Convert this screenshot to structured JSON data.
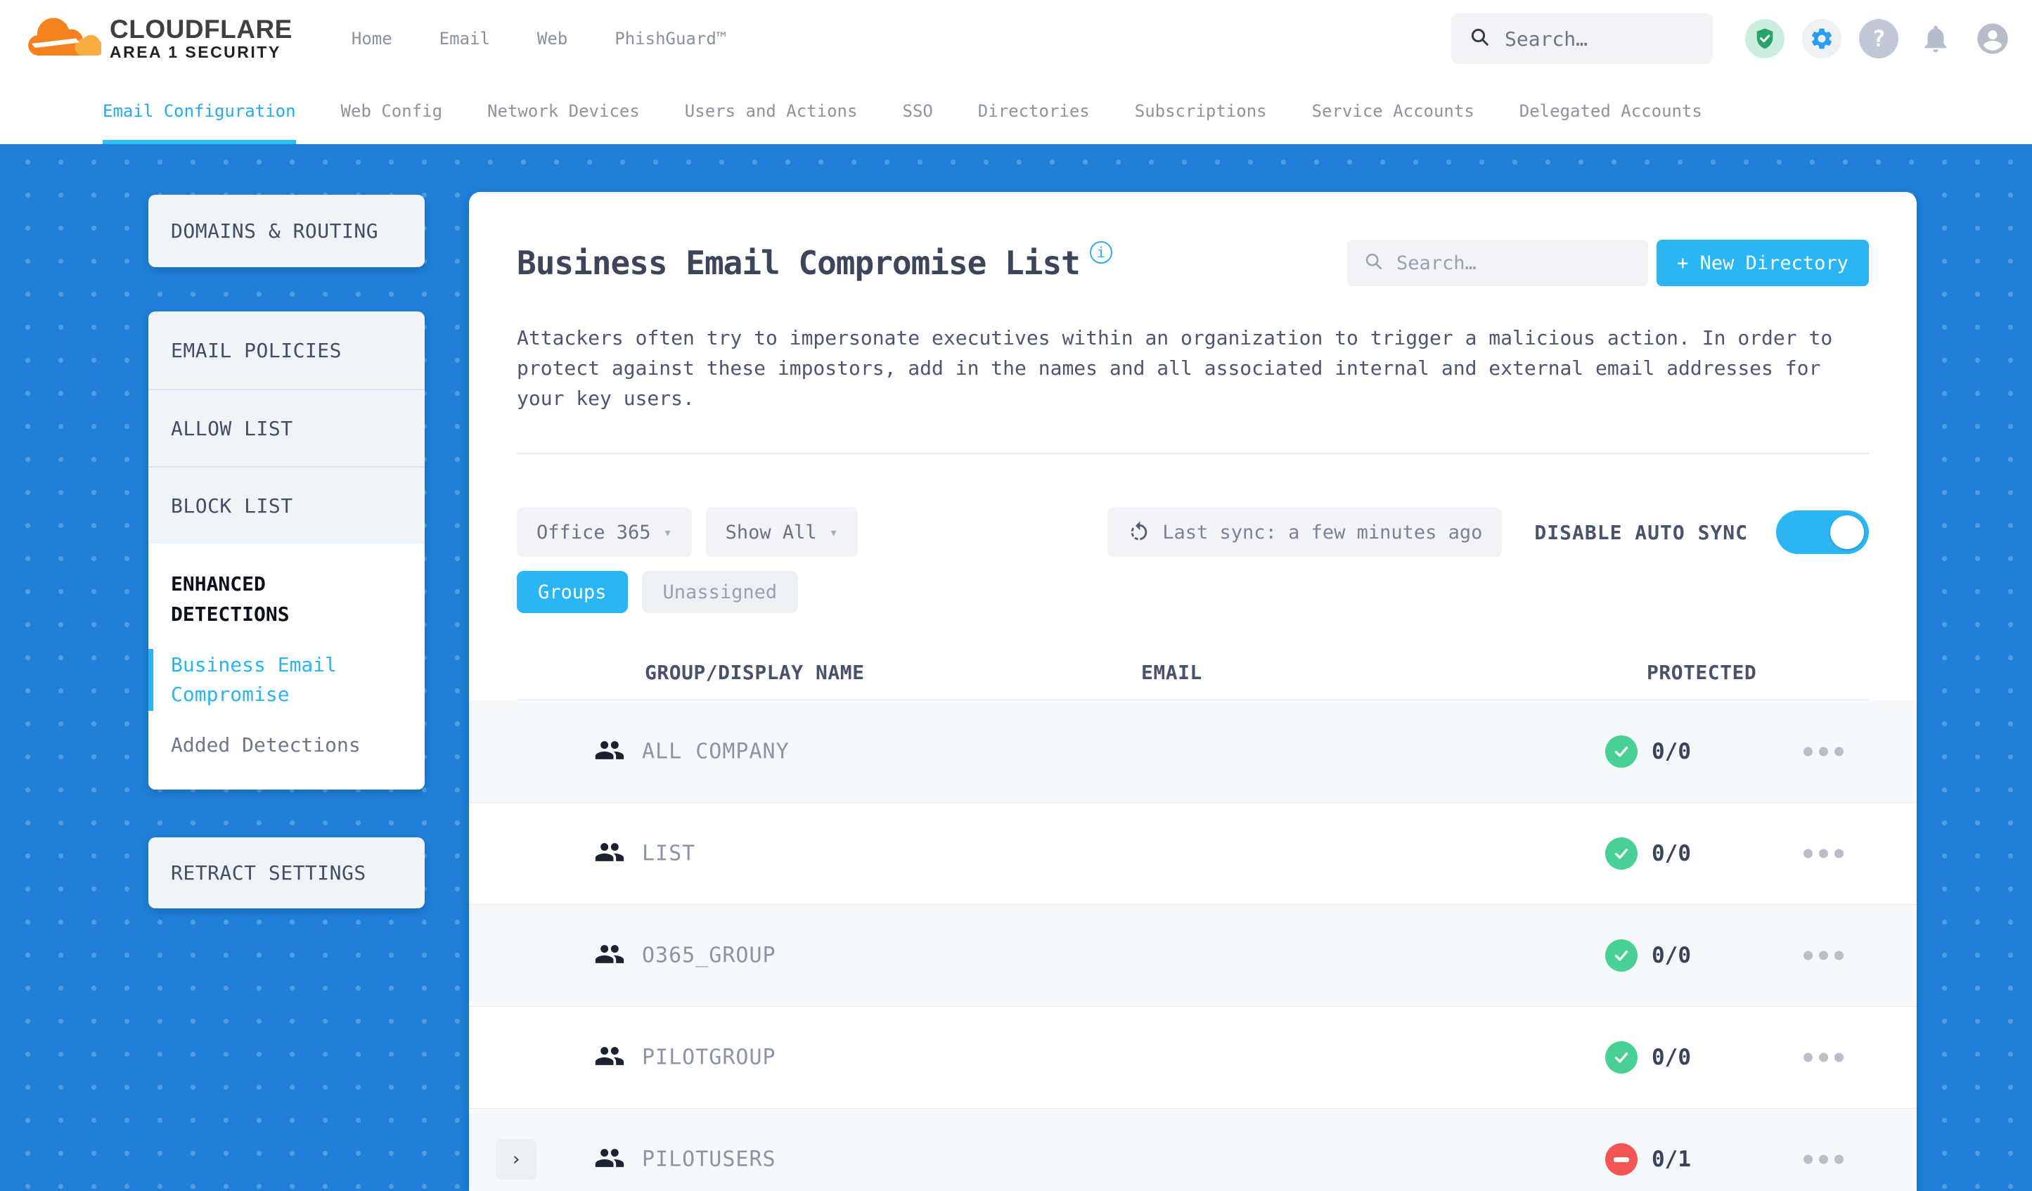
{
  "header": {
    "logo_line1": "CLOUDFLARE",
    "logo_line2": "AREA 1 SECURITY",
    "nav": [
      "Home",
      "Email",
      "Web",
      "PhishGuard™"
    ],
    "search_placeholder": "Search…"
  },
  "nav_tabs": [
    {
      "label": "Email Configuration",
      "active": true
    },
    {
      "label": "Web Config",
      "active": false
    },
    {
      "label": "Network Devices",
      "active": false
    },
    {
      "label": "Users and Actions",
      "active": false
    },
    {
      "label": "SSO",
      "active": false
    },
    {
      "label": "Directories",
      "active": false
    },
    {
      "label": "Subscriptions",
      "active": false
    },
    {
      "label": "Service Accounts",
      "active": false
    },
    {
      "label": "Delegated Accounts",
      "active": false
    }
  ],
  "sidebar": {
    "card_domains": "DOMAINS & ROUTING",
    "policy_items": [
      "EMAIL POLICIES",
      "ALLOW LIST",
      "BLOCK LIST"
    ],
    "enhanced_title": "ENHANCED DETECTIONS",
    "enhanced_items": [
      {
        "label": "Business Email Compromise",
        "active": true
      },
      {
        "label": "Added Detections",
        "active": false
      }
    ],
    "card_retract": "RETRACT SETTINGS"
  },
  "main": {
    "title": "Business Email Compromise List",
    "info_icon_glyph": "i",
    "search_placeholder": "Search…",
    "new_directory_label": "+ New Directory",
    "description": "Attackers often try to impersonate executives within an organization to trigger a malicious action. In order to protect against these impostors, add in the names and all associated internal and external email addresses for your key users.",
    "controls": {
      "directory_select": "Office 365",
      "filter_select": "Show All",
      "last_sync": "Last sync: a few minutes ago",
      "auto_sync_label": "DISABLE AUTO SYNC",
      "auto_sync_on": true
    },
    "view_tabs": [
      {
        "label": "Groups",
        "active": true
      },
      {
        "label": "Unassigned",
        "active": false
      }
    ],
    "table": {
      "columns": [
        "GROUP/DISPLAY NAME",
        "EMAIL",
        "PROTECTED"
      ],
      "rows": [
        {
          "name": "ALL COMPANY",
          "email": "",
          "protected": "0/0",
          "status": "protected",
          "expandable": false
        },
        {
          "name": "LIST",
          "email": "",
          "protected": "0/0",
          "status": "protected",
          "expandable": false
        },
        {
          "name": "O365_GROUP",
          "email": "",
          "protected": "0/0",
          "status": "protected",
          "expandable": false
        },
        {
          "name": "PILOTGROUP",
          "email": "",
          "protected": "0/0",
          "status": "protected",
          "expandable": false
        },
        {
          "name": "PILOTUSERS",
          "email": "",
          "protected": "0/1",
          "status": "unprotected",
          "expandable": true
        }
      ]
    }
  },
  "colors": {
    "accent_cyan": "#2ab6f4",
    "background_blue": "#2080d8",
    "protected_green": "#48d095",
    "unprotected_red": "#f35454"
  }
}
